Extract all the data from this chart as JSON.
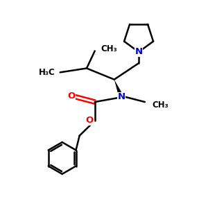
{
  "bg_color": "#ffffff",
  "bond_color": "#000000",
  "N_color": "#0000cd",
  "O_color": "#ff0000",
  "line_width": 1.8,
  "font_size": 8.5,
  "fig_size": [
    3.0,
    3.0
  ],
  "dpi": 100,
  "xlim": [
    0,
    10
  ],
  "ylim": [
    0,
    10
  ]
}
